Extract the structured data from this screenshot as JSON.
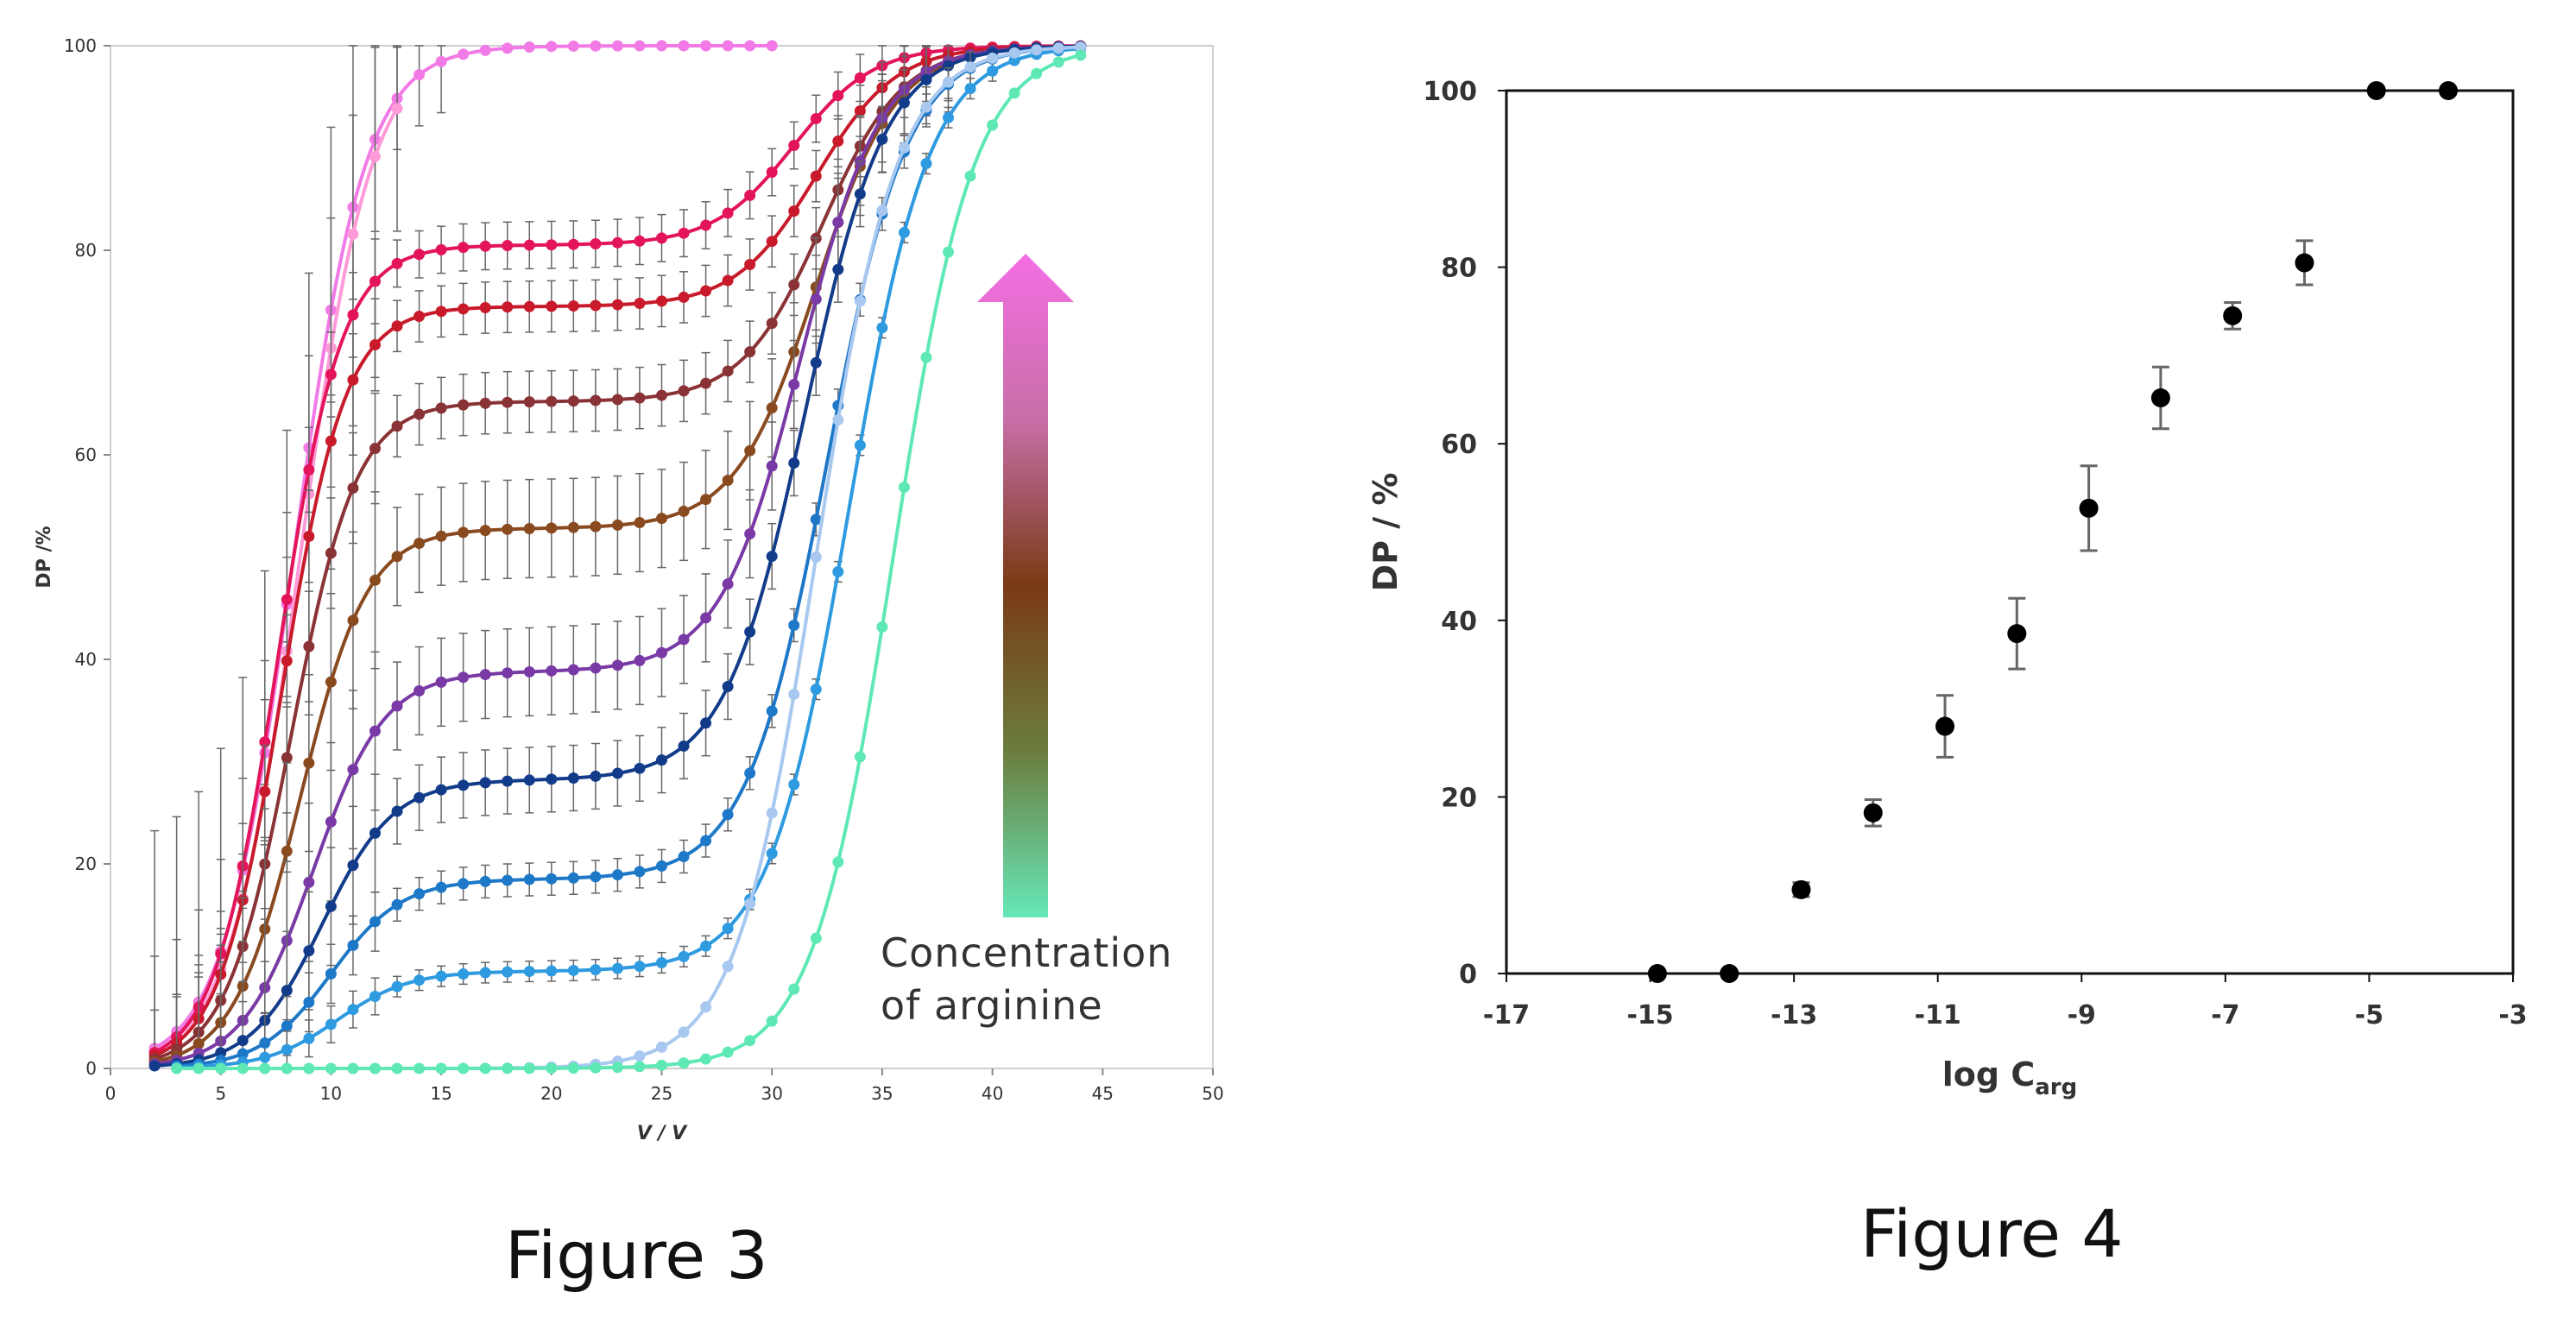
{
  "figures": {
    "fig3_caption": "Figure 3",
    "fig4_caption": "Figure 4"
  },
  "annotation": {
    "line1": "Concentration",
    "line2": "of arginine",
    "arrow_colors": [
      "#66e8b8",
      "#6b7d3e",
      "#7a3a14",
      "#c86fa8",
      "#f46ee4"
    ]
  },
  "chart_data": [
    {
      "id": "figure3",
      "type": "line",
      "title": "",
      "xlabel": "V / V",
      "ylabel": "DP /%",
      "xlim": [
        0,
        50
      ],
      "ylim": [
        0,
        100
      ],
      "xticks": [
        0,
        5,
        10,
        15,
        20,
        25,
        30,
        35,
        40,
        45,
        50
      ],
      "yticks": [
        0,
        20,
        40,
        60,
        80,
        100
      ],
      "grid": false,
      "legend": "none",
      "series": [
        {
          "color": "#f27ae6",
          "x0": 2,
          "x1": 30,
          "plateau": 100,
          "k1": 0.62,
          "m1": 8.3,
          "k2": 0.5,
          "m2": 33,
          "err": 5
        },
        {
          "color": "#ff9ad8",
          "x0": 2,
          "x1": 13,
          "plateau": 100,
          "k1": 0.62,
          "m1": 8.6,
          "k2": 0.5,
          "m2": 33,
          "err": 12
        },
        {
          "color": "#e4145a",
          "x0": 2,
          "x1": 44,
          "plateau": 80.5,
          "k1": 0.7,
          "m1": 7.6,
          "k2": 0.55,
          "m2": 31,
          "err": 2.3
        },
        {
          "color": "#c81a2a",
          "x0": 2,
          "x1": 44,
          "plateau": 74.5,
          "k1": 0.7,
          "m1": 7.8,
          "k2": 0.55,
          "m2": 32,
          "err": 2.5
        },
        {
          "color": "#8a3336",
          "x0": 2,
          "x1": 44,
          "plateau": 65.2,
          "k1": 0.68,
          "m1": 8.2,
          "k2": 0.55,
          "m2": 32.3,
          "err": 3
        },
        {
          "color": "#8a4a20",
          "x0": 2,
          "x1": 44,
          "plateau": 52.8,
          "k1": 0.66,
          "m1": 8.6,
          "k2": 0.55,
          "m2": 32,
          "err": 4.8
        },
        {
          "color": "#7a3aa6",
          "x0": 2,
          "x1": 44,
          "plateau": 38.8,
          "k1": 0.62,
          "m1": 9.2,
          "k2": 0.55,
          "m2": 31.3,
          "err": 4.3
        },
        {
          "color": "#123c8a",
          "x0": 2,
          "x1": 44,
          "plateau": 28.2,
          "k1": 0.62,
          "m1": 9.6,
          "k2": 0.55,
          "m2": 31.5,
          "err": 3.2
        },
        {
          "color": "#1e78c8",
          "x0": 3,
          "x1": 44,
          "plateau": 18.5,
          "k1": 0.62,
          "m1": 10,
          "k2": 0.55,
          "m2": 32.5,
          "err": 1.6
        },
        {
          "color": "#2e9ae0",
          "x0": 3,
          "x1": 44,
          "plateau": 9.5,
          "k1": 0.62,
          "m1": 10.3,
          "k2": 0.55,
          "m2": 33.5,
          "err": 1
        },
        {
          "color": "#a8c8f0",
          "x0": 3,
          "x1": 44,
          "plateau": 0,
          "k1": 0.6,
          "m1": 10,
          "k2": 0.55,
          "m2": 32,
          "err": 0
        },
        {
          "color": "#5ee8b4",
          "x0": 3,
          "x1": 44,
          "plateau": 0,
          "k1": 0.6,
          "m1": 10,
          "k2": 0.55,
          "m2": 35.5,
          "err": 0
        }
      ]
    },
    {
      "id": "figure4",
      "type": "scatter",
      "title": "",
      "xlabel": "log C",
      "xlabel_sub": "arg",
      "ylabel": "DP / %",
      "xlim": [
        -17,
        -3
      ],
      "ylim": [
        0,
        100
      ],
      "xticks": [
        -17,
        -15,
        -13,
        -11,
        -9,
        -7,
        -5,
        -3
      ],
      "yticks": [
        0,
        20,
        40,
        60,
        80,
        100
      ],
      "grid": false,
      "legend": "none",
      "points": [
        {
          "x": -14.9,
          "y": 0,
          "err": 0
        },
        {
          "x": -13.9,
          "y": 0,
          "err": 0
        },
        {
          "x": -12.9,
          "y": 9.5,
          "err": 0.8
        },
        {
          "x": -11.9,
          "y": 18.2,
          "err": 1.5
        },
        {
          "x": -10.9,
          "y": 28,
          "err": 3.5
        },
        {
          "x": -9.9,
          "y": 38.5,
          "err": 4
        },
        {
          "x": -8.9,
          "y": 52.7,
          "err": 4.8
        },
        {
          "x": -7.9,
          "y": 65.2,
          "err": 3.5
        },
        {
          "x": -6.9,
          "y": 74.5,
          "err": 1.5
        },
        {
          "x": -5.9,
          "y": 80.5,
          "err": 2.5
        },
        {
          "x": -4.9,
          "y": 100,
          "err": 0
        },
        {
          "x": -3.9,
          "y": 100,
          "err": 0
        }
      ]
    }
  ]
}
